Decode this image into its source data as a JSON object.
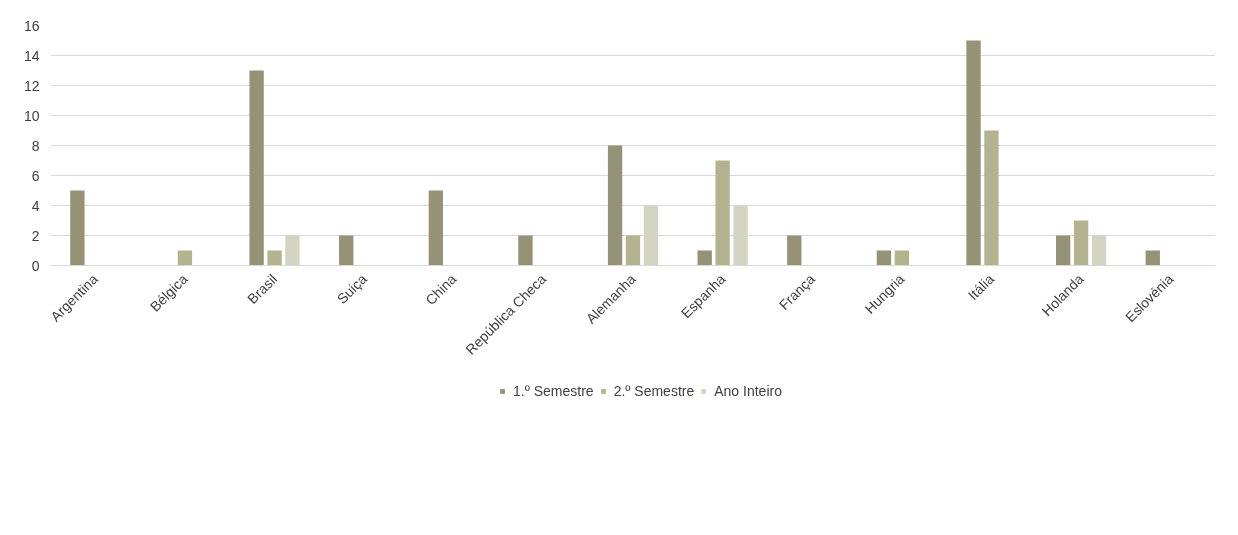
{
  "chart_data": {
    "type": "bar",
    "categories": [
      "Argentina",
      "Bélgica",
      "Brasil",
      "Suiça",
      "China",
      "República Checa",
      "Alemanha",
      "Espanha",
      "França",
      "Hungria",
      "Itália",
      "Holanda",
      "Eslovénia"
    ],
    "series": [
      {
        "name": "1.º Semestre",
        "color": "#959278",
        "values": [
          5,
          0,
          13,
          2,
          5,
          2,
          8,
          1,
          2,
          1,
          15,
          2,
          1
        ]
      },
      {
        "name": "2.º Semestre",
        "color": "#b4b390",
        "values": [
          0,
          1,
          1,
          0,
          0,
          0,
          2,
          7,
          0,
          1,
          9,
          3,
          0
        ]
      },
      {
        "name": "Ano Inteiro",
        "color": "#d4d4c3",
        "values": [
          0,
          0,
          2,
          0,
          0,
          0,
          4,
          4,
          0,
          0,
          0,
          2,
          0
        ]
      }
    ],
    "ylim": [
      0,
      16
    ],
    "yticks": [
      0,
      2,
      4,
      6,
      8,
      10,
      12,
      14,
      16
    ],
    "grid": "y",
    "legend": "bottom"
  }
}
